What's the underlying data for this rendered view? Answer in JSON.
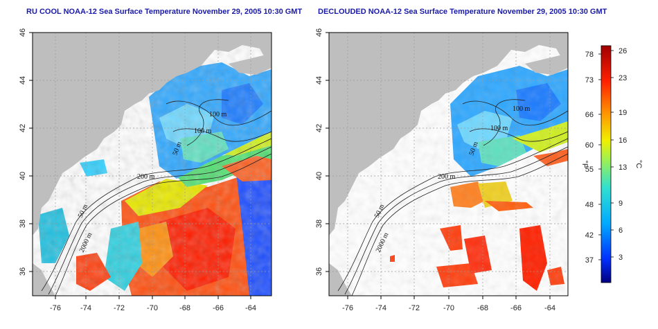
{
  "panels": [
    {
      "title": "RU COOL NOAA-12 Sea Surface Temperature November 29, 2005 10:30 GMT"
    },
    {
      "title": "DECLOUDED NOAA-12 Sea Surface Temperature November 29, 2005 10:30 GMT"
    }
  ],
  "axes": {
    "lon_ticks": [
      "-76",
      "-74",
      "-72",
      "-70",
      "-68",
      "-66",
      "-64"
    ],
    "lat_ticks": [
      "36",
      "38",
      "40",
      "42",
      "44",
      "46"
    ],
    "lon_range": [
      -77.2,
      -63.0
    ],
    "lat_range": [
      35.0,
      46.0
    ]
  },
  "contour_labels": [
    "100 m",
    "100 m",
    "50 m",
    "200 m",
    "50 m",
    "2000 m"
  ],
  "colorbar": {
    "fahrenheit_label": "°F",
    "celsius_label": "°C",
    "fahrenheit_ticks": [
      "78",
      "73",
      "66",
      "60",
      "55",
      "48",
      "42",
      "37"
    ],
    "celsius_ticks": [
      "26",
      "23",
      "19",
      "16",
      "13",
      "9",
      "6",
      "3"
    ],
    "celsius_range": [
      0,
      27
    ],
    "colors": [
      "#000080",
      "#0030ff",
      "#00aaff",
      "#30e0d0",
      "#a0f050",
      "#f0f000",
      "#ff9000",
      "#ff2000",
      "#a00000"
    ]
  },
  "colors": {
    "land": "#bebebe",
    "title": "#1a1aa8"
  }
}
